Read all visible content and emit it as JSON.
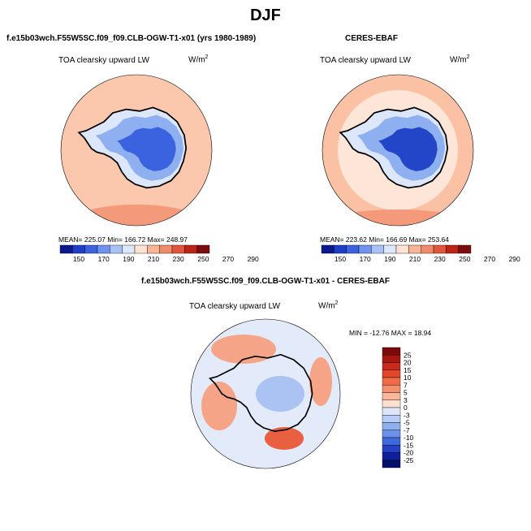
{
  "title": "DJF",
  "panels": [
    {
      "case_title": "f.e15b03wch.F55W5SC.f09_f09.CLB-OGW-T1-x01 (yrs 1980-1989)",
      "variable": "TOA clearsky upward LW",
      "units": "W/m",
      "units_exp": "2",
      "stats": "MEAN= 225.07   Min= 166.72   Max= 248.97"
    },
    {
      "case_title": "CERES-EBAF",
      "variable": "TOA clearsky upward LW",
      "units": "W/m",
      "units_exp": "2",
      "stats": "MEAN= 223.62   Min= 166.69   Max= 253.64"
    }
  ],
  "colorbar_h": {
    "levels": [
      "150",
      "170",
      "190",
      "210",
      "230",
      "250",
      "270",
      "290"
    ],
    "colors": [
      "#0a1a8c",
      "#1f3ec8",
      "#3b63e0",
      "#6f93ee",
      "#a9c2f5",
      "#dde7fb",
      "#fde3d2",
      "#f8b497",
      "#f08a6b",
      "#e1553c",
      "#bb2517",
      "#7c0d0d"
    ]
  },
  "difference": {
    "title": "f.e15b03wch.F55W5SC.f09_f09.CLB-OGW-T1-x01 - CERES-EBAF",
    "variable": "TOA clearsky upward LW",
    "units": "W/m",
    "units_exp": "2",
    "minmax": "MIN = -12.76  MAX =   18.94",
    "colorbar": {
      "levels": [
        "25",
        "20",
        "15",
        "10",
        "7",
        "5",
        "3",
        "0",
        "-3",
        "-5",
        "-7",
        "-10",
        "-15",
        "-20",
        "-25"
      ],
      "colors": [
        "#7c0a0a",
        "#a81710",
        "#cc2a1b",
        "#e34628",
        "#ef6b47",
        "#f58f6e",
        "#f9b79c",
        "#fde0d0",
        "#dde6f9",
        "#b8cdf5",
        "#8fb0ef",
        "#6a90e8",
        "#3f69dc",
        "#2340c6",
        "#10209a",
        "#03106a"
      ]
    }
  },
  "map_colors": {
    "ocean_model": "#fbc8ae",
    "ocean_obs": "#fbc1a5",
    "ring_light": "#fde6d8",
    "rim_warm": "#f4997a",
    "continent_light": "#dde7fb",
    "continent_mid": "#8fb0f0",
    "continent_deep": "#3b63e0",
    "continent_core": "#2346c8",
    "diff_base": "#e3ebfb",
    "diff_pos": "#f6a487",
    "diff_pos_strong": "#e8603f",
    "diff_neg": "#aac3f3",
    "coast": "#000000"
  }
}
